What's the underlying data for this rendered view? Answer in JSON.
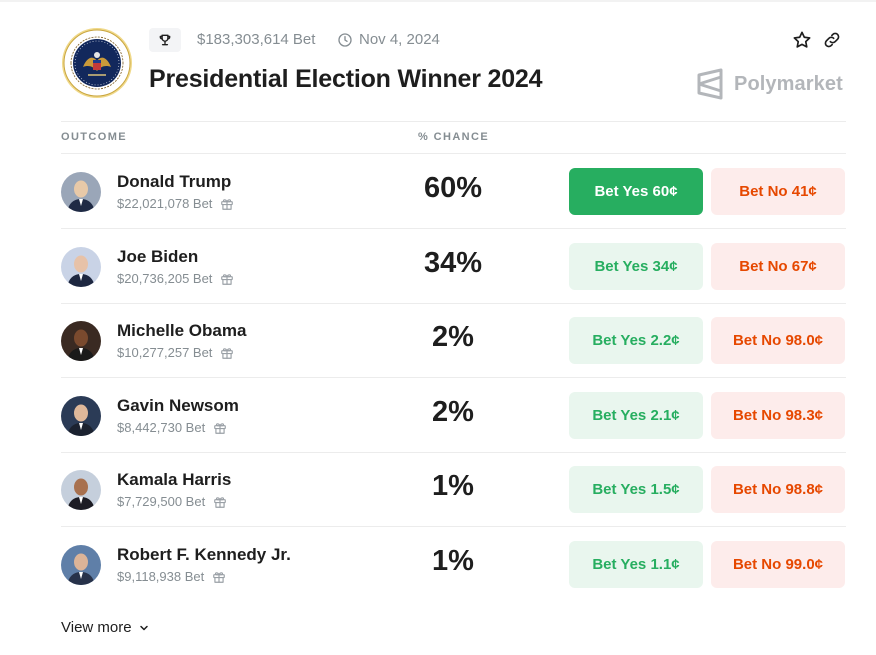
{
  "market": {
    "volume": "$183,303,614 Bet",
    "date": "Nov 4, 2024",
    "title": "Presidential Election Winner 2024",
    "brand": "Polymarket"
  },
  "columns": {
    "outcome": "OUTCOME",
    "chance": "% CHANCE"
  },
  "outcomes": [
    {
      "name": "Donald Trump",
      "volume": "$22,021,078 Bet",
      "chance": "60%",
      "yes": "Bet Yes 60¢",
      "no": "Bet No 41¢",
      "avatar_bg": "#9aa6b8",
      "avatar_fg": "#e8c9a8",
      "suit": "#1f2a44"
    },
    {
      "name": "Joe Biden",
      "volume": "$20,736,205 Bet",
      "chance": "34%",
      "yes": "Bet Yes 34¢",
      "no": "Bet No 67¢",
      "avatar_bg": "#c9d3e6",
      "avatar_fg": "#e7c2a8",
      "suit": "#1d2740"
    },
    {
      "name": "Michelle Obama",
      "volume": "$10,277,257 Bet",
      "chance": "2%",
      "yes": "Bet Yes 2.2¢",
      "no": "Bet No 98.0¢",
      "avatar_bg": "#3a2a22",
      "avatar_fg": "#7a4a2e",
      "suit": "#1a1a1a"
    },
    {
      "name": "Gavin Newsom",
      "volume": "$8,442,730 Bet",
      "chance": "2%",
      "yes": "Bet Yes 2.1¢",
      "no": "Bet No 98.3¢",
      "avatar_bg": "#2b3b56",
      "avatar_fg": "#dfb89a",
      "suit": "#1b2230"
    },
    {
      "name": "Kamala Harris",
      "volume": "$7,729,500 Bet",
      "chance": "1%",
      "yes": "Bet Yes 1.5¢",
      "no": "Bet No 98.8¢",
      "avatar_bg": "#c5cfdc",
      "avatar_fg": "#a8714f",
      "suit": "#1c1c24"
    },
    {
      "name": "Robert F. Kennedy Jr.",
      "volume": "$9,118,938 Bet",
      "chance": "1%",
      "yes": "Bet Yes 1.1¢",
      "no": "Bet No 99.0¢",
      "avatar_bg": "#5f7fa8",
      "avatar_fg": "#dcb498",
      "suit": "#27324a"
    }
  ],
  "footer": {
    "view_more": "View more"
  },
  "colors": {
    "yes_primary": "#27ae60",
    "yes_soft": "#e9f6ee",
    "no_soft": "#fdeceb",
    "no_text": "#e64800",
    "muted": "#858d92"
  }
}
